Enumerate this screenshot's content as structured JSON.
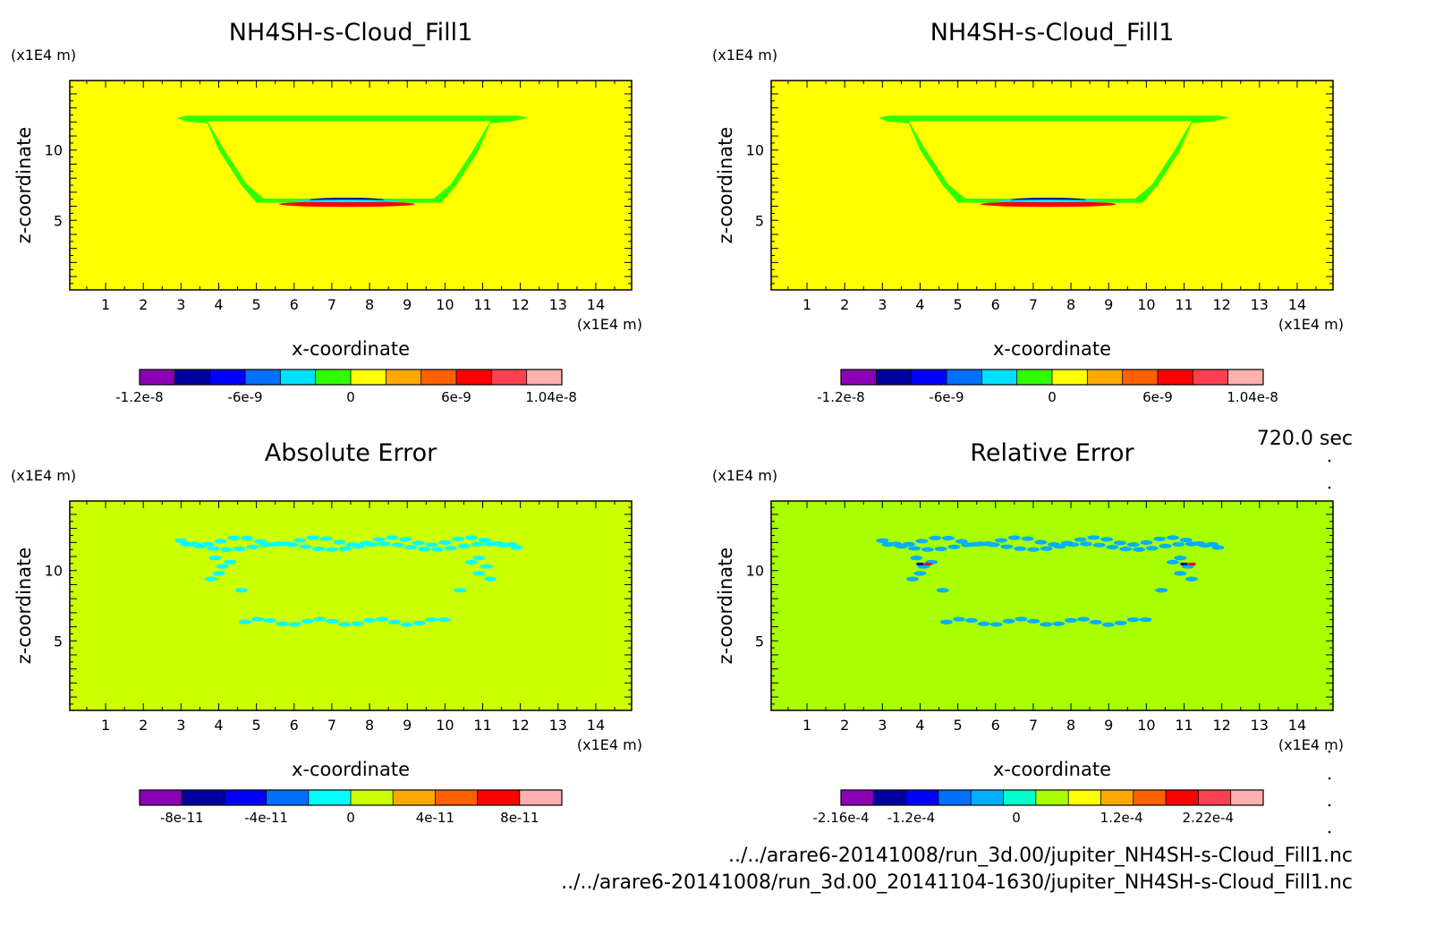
{
  "time_label": "720.0 sec",
  "files": [
    "../../arare6-20141008/run_3d.00/jupiter_NH4SH-s-Cloud_Fill1.nc",
    "../../arare6-20141008/run_3d.00_20141104-1630/jupiter_NH4SH-s-Cloud_Fill1.nc"
  ],
  "chart_data": [
    {
      "type": "heatmap",
      "title": "NH4SH-s-Cloud_Fill1",
      "xlabel": "x-coordinate",
      "ylabel": "z-coordinate",
      "x_unit": "(x1E4 m)",
      "z_unit": "(x1E4 m)",
      "xlim": [
        0.05,
        14.95
      ],
      "ylim": [
        0.05,
        14.95
      ],
      "x_ticks": [
        1,
        2,
        3,
        4,
        5,
        6,
        7,
        8,
        9,
        10,
        11,
        12,
        13,
        14
      ],
      "y_ticks": [
        5,
        10
      ],
      "background_color": "#ffff00",
      "colorbar": {
        "colors": [
          "#8b00b5",
          "#0000a0",
          "#0000ff",
          "#0070ff",
          "#00e0ff",
          "#30ff00",
          "#ffff00",
          "#ffa800",
          "#ff6000",
          "#ff0000",
          "#ff4050",
          "#ffb0b0"
        ],
        "labels": [
          "-1.2e-8",
          "-6e-9",
          "0",
          "6e-9",
          "1.04e-8"
        ],
        "label_positions": [
          0,
          3,
          6,
          9,
          11.7
        ]
      }
    },
    {
      "type": "heatmap",
      "title": "NH4SH-s-Cloud_Fill1",
      "xlabel": "x-coordinate",
      "ylabel": "z-coordinate",
      "x_unit": "(x1E4 m)",
      "z_unit": "(x1E4 m)",
      "xlim": [
        0.05,
        14.95
      ],
      "ylim": [
        0.05,
        14.95
      ],
      "x_ticks": [
        1,
        2,
        3,
        4,
        5,
        6,
        7,
        8,
        9,
        10,
        11,
        12,
        13,
        14
      ],
      "y_ticks": [
        5,
        10
      ],
      "background_color": "#ffff00",
      "colorbar": {
        "colors": [
          "#8b00b5",
          "#0000a0",
          "#0000ff",
          "#0070ff",
          "#00e0ff",
          "#30ff00",
          "#ffff00",
          "#ffa800",
          "#ff6000",
          "#ff0000",
          "#ff4050",
          "#ffb0b0"
        ],
        "labels": [
          "-1.2e-8",
          "-6e-9",
          "0",
          "6e-9",
          "1.04e-8"
        ],
        "label_positions": [
          0,
          3,
          6,
          9,
          11.7
        ]
      }
    },
    {
      "type": "heatmap",
      "title": "Absolute Error",
      "xlabel": "x-coordinate",
      "ylabel": "z-coordinate",
      "x_unit": "(x1E4 m)",
      "z_unit": "(x1E4 m)",
      "xlim": [
        0.05,
        14.95
      ],
      "ylim": [
        0.05,
        14.95
      ],
      "x_ticks": [
        1,
        2,
        3,
        4,
        5,
        6,
        7,
        8,
        9,
        10,
        11,
        12,
        13,
        14
      ],
      "y_ticks": [
        5,
        10
      ],
      "background_color": "#ccff00",
      "colorbar": {
        "colors": [
          "#8b00b5",
          "#0000a0",
          "#0000ff",
          "#0070ff",
          "#00ffff",
          "#ccff00",
          "#ffa800",
          "#ff6000",
          "#ff0000",
          "#ffb0b0"
        ],
        "labels": [
          "-8e-11",
          "-4e-11",
          "0",
          "4e-11",
          "8e-11"
        ],
        "label_positions": [
          1,
          3,
          5,
          7,
          9
        ]
      }
    },
    {
      "type": "heatmap",
      "title": "Relative Error",
      "xlabel": "x-coordinate",
      "ylabel": "z-coordinate",
      "x_unit": "(x1E4 m)",
      "z_unit": "(x1E4 m)",
      "xlim": [
        0.05,
        14.95
      ],
      "ylim": [
        0.05,
        14.95
      ],
      "x_ticks": [
        1,
        2,
        3,
        4,
        5,
        6,
        7,
        8,
        9,
        10,
        11,
        12,
        13,
        14
      ],
      "y_ticks": [
        5,
        10
      ],
      "background_color": "#a8ff00",
      "colorbar": {
        "colors": [
          "#8b00b5",
          "#0000a0",
          "#0000ff",
          "#0070ff",
          "#00b0ff",
          "#00ffcc",
          "#a8ff00",
          "#ffff00",
          "#ffa800",
          "#ff6000",
          "#ff0000",
          "#ff4050",
          "#ffb0b0"
        ],
        "labels": [
          "-2.16e-4",
          "-1.2e-4",
          "0",
          "1.2e-4",
          "2.22e-4"
        ],
        "label_positions": [
          0,
          2.16,
          5.4,
          8.64,
          11.3
        ]
      }
    }
  ]
}
